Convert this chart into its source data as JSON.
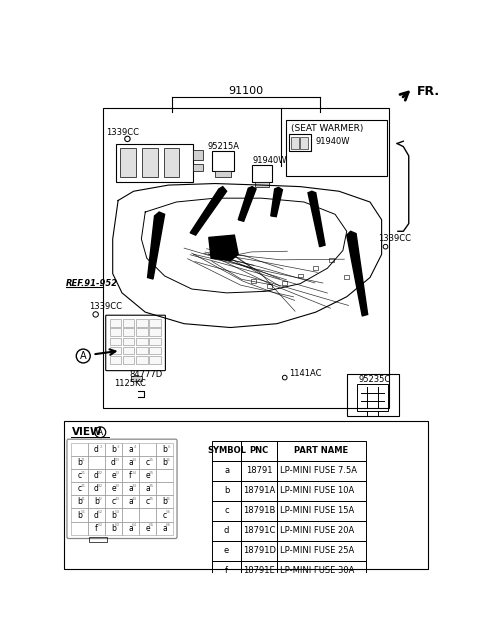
{
  "bg_color": "#ffffff",
  "part_number_top": "91100",
  "fr_label": "FR.",
  "labels": {
    "1339CC_tl": "1339CC",
    "95215A": "95215A",
    "91940W_left": "91940W",
    "seat_warmer": "(SEAT WARMER)",
    "91940W_right": "91940W",
    "1339CC_tr": "1339CC",
    "ref": "REF.91-952",
    "1339CC_bl": "1339CC",
    "84777D": "84777D",
    "A_label": "A",
    "1125KC": "1125KC",
    "1141AC": "1141AC",
    "95235C": "95235C"
  },
  "table_symbols": [
    "a",
    "b",
    "c",
    "d",
    "e",
    "f"
  ],
  "table_pnc": [
    "18791",
    "18791A",
    "18791B",
    "18791C",
    "18791D",
    "18791E"
  ],
  "table_parts": [
    "LP-MINI FUSE 7.5A",
    "LP-MINI FUSE 10A",
    "LP-MINI FUSE 15A",
    "LP-MINI FUSE 20A",
    "LP-MINI FUSE 25A",
    "LP-MINI FUSE 30A"
  ],
  "fuse_grid_rows": [
    [
      "",
      "d",
      "b",
      "a",
      "",
      "b"
    ],
    [
      "b",
      "",
      "d",
      "a",
      "c",
      "b"
    ],
    [
      "c",
      "d",
      "e",
      "f",
      "e",
      ""
    ],
    [
      "c",
      "d",
      "e",
      "a",
      "a",
      ""
    ],
    [
      "b",
      "b",
      "c",
      "a",
      "c",
      "b"
    ],
    [
      "b",
      "d",
      "b",
      "",
      "",
      "c"
    ],
    [
      "",
      "f",
      "b",
      "a",
      "e",
      "a"
    ]
  ]
}
